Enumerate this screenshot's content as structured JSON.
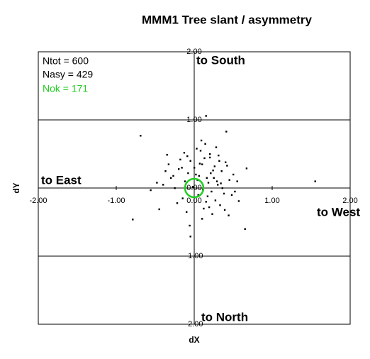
{
  "chart_data": {
    "type": "scatter",
    "title": "MMM1 Tree slant  / asymmetry",
    "x_label": "dX",
    "y_label": "dY",
    "stats": [
      "Ntot = 600",
      "Nasy = 429",
      "Nok = 171"
    ],
    "annotations": [
      "to South",
      "to East",
      "to West",
      "to North"
    ],
    "xlim": [
      -2,
      2
    ],
    "ylim": [
      -2,
      2
    ],
    "xticks": [
      {
        "value": -2,
        "label": "-2.00"
      },
      {
        "value": -1,
        "label": "-1.00"
      },
      {
        "value": 0,
        "label": "0.00"
      },
      {
        "value": 1,
        "label": "1.00"
      },
      {
        "value": 2,
        "label": "2.00"
      }
    ],
    "yticks": [
      {
        "value": -2,
        "label": "-2.00"
      },
      {
        "value": -1,
        "label": "-1.00"
      },
      {
        "value": 0,
        "label": "0.00"
      },
      {
        "value": 1,
        "label": "1.00"
      },
      {
        "value": 2,
        "label": "2.00"
      }
    ],
    "grid": "y",
    "color": "#000000",
    "x": [
      -0.69,
      0.15,
      0.41,
      1.55,
      -0.79,
      -0.05,
      0.65,
      -0.56,
      -0.45,
      -0.35,
      0.67,
      0.57,
      0.02,
      0.1,
      -0.12,
      0.2,
      0.25,
      -0.2,
      0.05,
      0.3,
      -0.05,
      0.15,
      0.35,
      -0.25,
      0.08,
      0.18,
      -0.15,
      0.4,
      0.12,
      -0.08,
      0.28,
      0.22,
      -0.3,
      0.45,
      0.0,
      0.33,
      -0.18,
      0.06,
      0.14,
      0.26,
      -0.1,
      0.38,
      0.5,
      -0.4,
      0.1,
      0.2,
      -0.02,
      0.31,
      0.17,
      -0.22,
      0.04,
      0.24,
      0.44,
      -0.33,
      0.09,
      0.36,
      -0.13,
      0.19,
      0.29,
      0.52,
      -0.06,
      0.13,
      0.23,
      -0.27,
      0.42,
      0.07,
      0.34,
      -0.16,
      0.27,
      0.11,
      0.48,
      -0.37,
      0.16,
      0.03,
      0.21,
      0.39,
      -0.09,
      0.32,
      0.55,
      -0.48
    ],
    "values": [
      0.77,
      1.06,
      0.83,
      0.1,
      -0.46,
      -0.71,
      -0.6,
      -0.03,
      -0.31,
      0.49,
      0.29,
      -0.19,
      0.2,
      0.35,
      0.1,
      0.45,
      0.15,
      0.28,
      -0.1,
      0.05,
      0.4,
      -0.2,
      0.25,
      0.0,
      0.55,
      0.08,
      -0.15,
      0.38,
      -0.3,
      0.22,
      0.6,
      -0.05,
      0.15,
      0.12,
      0.3,
      -0.25,
      0.42,
      0.18,
      0.65,
      0.32,
      -0.35,
      -0.08,
      0.2,
      0.05,
      -0.45,
      0.5,
      0.02,
      0.48,
      -0.12,
      -0.22,
      0.12,
      0.26,
      -0.4,
      0.35,
      0.7,
      0.0,
      0.52,
      -0.28,
      0.1,
      -0.05,
      -0.55,
      0.44,
      -0.38,
      0.18,
      0.33,
      0.36,
      0.07,
      0.3,
      -0.18,
      -0.02,
      -0.1,
      0.25,
      0.15,
      0.58,
      0.22,
      -0.32,
      0.47,
      0.4,
      0.1,
      0.08
    ]
  }
}
